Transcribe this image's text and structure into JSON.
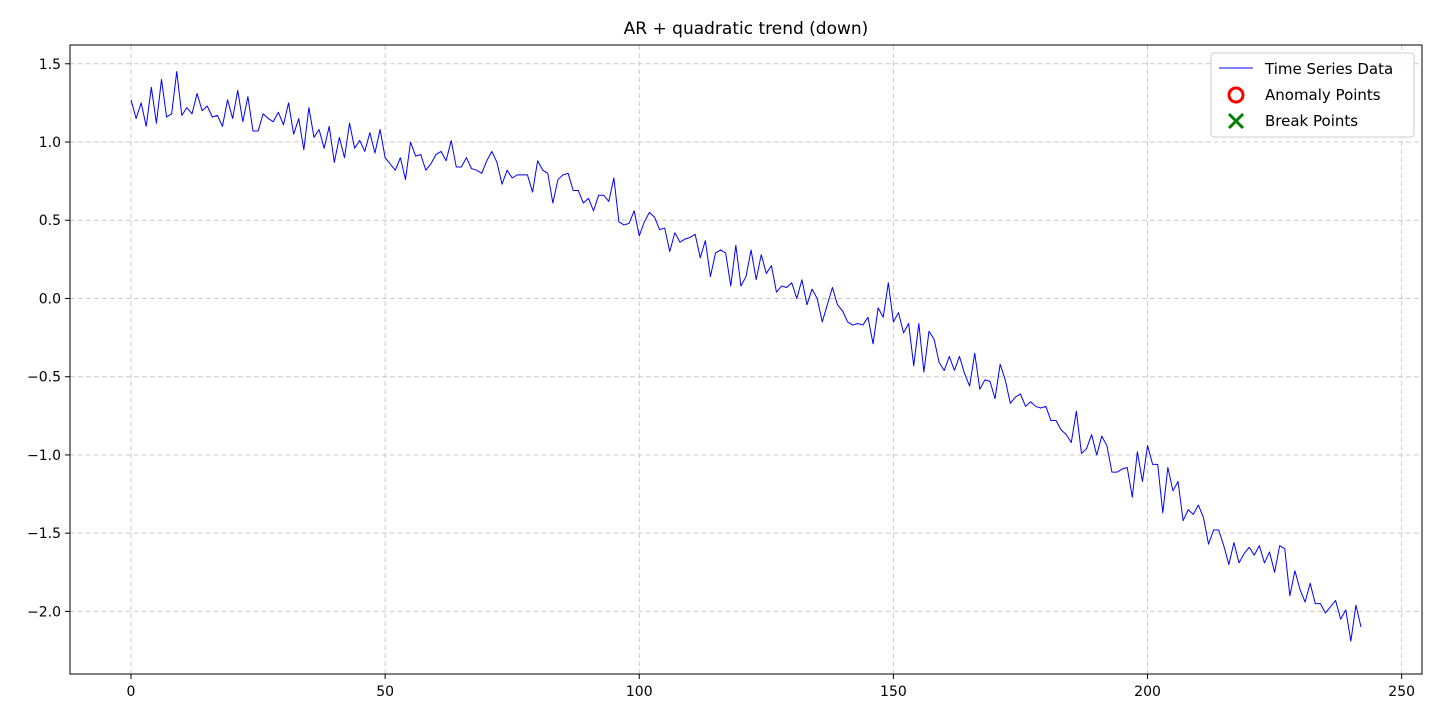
{
  "chart_data": {
    "type": "line",
    "title": "AR + quadratic trend (down)",
    "xlabel": "",
    "ylabel": "",
    "xlim": [
      -12,
      254
    ],
    "ylim": [
      -2.4,
      1.62
    ],
    "xticks": [
      0,
      50,
      100,
      150,
      200,
      250
    ],
    "yticks": [
      -2.0,
      -1.5,
      -1.0,
      -0.5,
      0.0,
      0.5,
      1.0,
      1.5
    ],
    "xtick_labels": [
      "0",
      "50",
      "100",
      "150",
      "200",
      "250"
    ],
    "ytick_labels": [
      "−2.0",
      "−1.5",
      "−1.0",
      "−0.5",
      "0.0",
      "0.5",
      "1.0",
      "1.5"
    ],
    "grid": true,
    "legend": {
      "placement": "upper-right",
      "entries": [
        {
          "label": "Time Series Data",
          "marker": "line",
          "color": "#0000ff"
        },
        {
          "label": "Anomaly Points",
          "marker": "circle",
          "color": "#ff0000"
        },
        {
          "label": "Break Points",
          "marker": "x",
          "color": "#008000"
        }
      ]
    },
    "series": [
      {
        "name": "Time Series Data",
        "color": "#0000ff",
        "x_start": 0,
        "x_step": 1,
        "values": [
          1.27,
          1.15,
          1.25,
          1.1,
          1.35,
          1.12,
          1.4,
          1.16,
          1.18,
          1.45,
          1.17,
          1.22,
          1.18,
          1.31,
          1.2,
          1.23,
          1.16,
          1.17,
          1.1,
          1.27,
          1.15,
          1.33,
          1.13,
          1.29,
          1.07,
          1.07,
          1.18,
          1.15,
          1.13,
          1.19,
          1.11,
          1.25,
          1.05,
          1.15,
          0.95,
          1.22,
          1.03,
          1.08,
          0.96,
          1.1,
          0.87,
          1.03,
          0.9,
          1.12,
          0.96,
          1.01,
          0.94,
          1.06,
          0.93,
          1.08,
          0.9,
          0.86,
          0.82,
          0.9,
          0.76,
          1.0,
          0.91,
          0.92,
          0.82,
          0.86,
          0.92,
          0.94,
          0.88,
          1.01,
          0.84,
          0.84,
          0.9,
          0.83,
          0.82,
          0.8,
          0.88,
          0.94,
          0.87,
          0.73,
          0.82,
          0.77,
          0.79,
          0.79,
          0.79,
          0.68,
          0.88,
          0.82,
          0.8,
          0.61,
          0.76,
          0.79,
          0.8,
          0.69,
          0.69,
          0.61,
          0.64,
          0.56,
          0.66,
          0.66,
          0.62,
          0.77,
          0.49,
          0.47,
          0.48,
          0.56,
          0.4,
          0.49,
          0.55,
          0.52,
          0.44,
          0.45,
          0.3,
          0.42,
          0.36,
          0.38,
          0.39,
          0.41,
          0.26,
          0.37,
          0.14,
          0.29,
          0.31,
          0.29,
          0.08,
          0.34,
          0.08,
          0.14,
          0.31,
          0.12,
          0.28,
          0.16,
          0.21,
          0.04,
          0.08,
          0.07,
          0.1,
          0.0,
          0.12,
          -0.04,
          0.06,
          0.0,
          -0.15,
          -0.04,
          0.07,
          -0.04,
          -0.08,
          -0.15,
          -0.17,
          -0.16,
          -0.17,
          -0.12,
          -0.29,
          -0.06,
          -0.12,
          0.1,
          -0.15,
          -0.09,
          -0.22,
          -0.16,
          -0.43,
          -0.16,
          -0.47,
          -0.21,
          -0.26,
          -0.41,
          -0.46,
          -0.37,
          -0.46,
          -0.37,
          -0.48,
          -0.56,
          -0.35,
          -0.58,
          -0.52,
          -0.53,
          -0.64,
          -0.42,
          -0.52,
          -0.67,
          -0.63,
          -0.61,
          -0.69,
          -0.66,
          -0.69,
          -0.7,
          -0.69,
          -0.78,
          -0.78,
          -0.84,
          -0.87,
          -0.92,
          -0.72,
          -0.99,
          -0.96,
          -0.87,
          -1.0,
          -0.88,
          -0.94,
          -1.11,
          -1.11,
          -1.09,
          -1.08,
          -1.27,
          -0.98,
          -1.17,
          -0.94,
          -1.06,
          -1.06,
          -1.37,
          -1.08,
          -1.23,
          -1.17,
          -1.42,
          -1.35,
          -1.38,
          -1.32,
          -1.4,
          -1.57,
          -1.48,
          -1.48,
          -1.58,
          -1.7,
          -1.56,
          -1.69,
          -1.63,
          -1.59,
          -1.64,
          -1.58,
          -1.69,
          -1.62,
          -1.75,
          -1.58,
          -1.6,
          -1.9,
          -1.74,
          -1.86,
          -1.94,
          -1.82,
          -1.95,
          -1.95,
          -2.01,
          -1.97,
          -1.93,
          -2.05,
          -1.99,
          -2.19,
          -1.96,
          -2.1
        ]
      }
    ],
    "anomaly_points": [],
    "break_points": []
  }
}
